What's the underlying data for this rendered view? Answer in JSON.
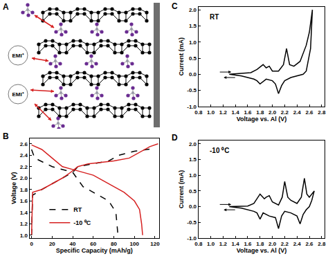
{
  "diagram": {
    "label": "A",
    "ions": [
      "EMI⁺",
      "EMI⁺"
    ]
  },
  "chart_data": [
    {
      "type": "line",
      "annotations": [
        "B"
      ],
      "x_label": "Specific Capacity (mAh/g)",
      "y_label": "Voltage (V)",
      "xlim": [
        -2,
        124
      ],
      "xticks": [
        0,
        20,
        40,
        60,
        80,
        100,
        120
      ],
      "ylim": [
        0.95,
        2.7
      ],
      "yticks": [
        {
          "value": 1.0,
          "label": "1.0"
        },
        1.2,
        1.4,
        1.6,
        1.8,
        {
          "value": 2.0,
          "label": "2.0"
        },
        2.2,
        2.4,
        2.6
      ],
      "legend": "lower left",
      "series": [
        {
          "name": "RT",
          "color": "#000000",
          "line_style": "dash",
          "x": [
            0,
            1,
            10,
            20,
            30,
            40,
            45,
            60,
            75,
            85,
            100,
            120,
            null,
            0,
            3,
            20,
            40,
            50,
            60,
            75,
            82,
            84
          ],
          "values": [
            1.0,
            1.7,
            1.8,
            1.9,
            2.0,
            2.1,
            2.2,
            2.25,
            2.3,
            2.4,
            2.47,
            2.52,
            null,
            2.5,
            2.35,
            2.2,
            2.1,
            1.85,
            1.75,
            1.6,
            1.4,
            1.0
          ]
        },
        {
          "name": "-10 ⁰C",
          "color": "#d62020",
          "line_style": "solid",
          "x": [
            0,
            1,
            10,
            20,
            30,
            38,
            45,
            55,
            80,
            95,
            105,
            115,
            123,
            null,
            0,
            10,
            20,
            30,
            40,
            50,
            60,
            70,
            80,
            90,
            100,
            105,
            107,
            108
          ],
          "values": [
            1.0,
            1.75,
            1.8,
            1.9,
            2.0,
            2.1,
            2.2,
            2.25,
            2.3,
            2.35,
            2.45,
            2.55,
            2.6,
            null,
            2.58,
            2.5,
            2.35,
            2.2,
            2.15,
            2.1,
            2.05,
            1.95,
            1.85,
            1.75,
            1.6,
            1.45,
            1.2,
            1.0
          ]
        }
      ]
    },
    {
      "type": "line",
      "annotations": [
        "C",
        "RT"
      ],
      "x_label": "Voltage vs. Al (V)",
      "y_label": "Current (mA)",
      "xlim": [
        0.8,
        2.85
      ],
      "xticks": [
        0.8,
        {
          "value": 1.0,
          "label": "1.0"
        },
        1.2,
        1.4,
        1.6,
        1.8,
        {
          "value": 2.0,
          "label": "2.0"
        },
        2.2,
        2.4,
        2.6,
        2.8
      ],
      "ylim": [
        -1.0,
        2.1
      ],
      "yticks": [
        {
          "value": -1.0,
          "label": "-1.0"
        },
        -0.5,
        {
          "value": 0.0,
          "label": "0.0"
        },
        0.5,
        {
          "value": 1.0,
          "label": "1.0"
        },
        1.5,
        {
          "value": 2.0,
          "label": "2.0"
        }
      ],
      "series": [
        {
          "name": "RT",
          "color": "#000000",
          "line_style": "solid",
          "x": [
            1.3,
            1.5,
            1.65,
            1.75,
            1.85,
            1.9,
            1.95,
            2.0,
            2.1,
            2.18,
            2.23,
            2.28,
            2.35,
            2.45,
            2.55,
            2.6,
            2.65,
            2.62,
            2.55,
            2.5,
            2.4,
            2.3,
            2.2,
            2.15,
            2.1,
            2.05,
            2.0,
            1.9,
            1.8,
            1.75,
            1.7,
            1.5,
            1.3
          ],
          "values": [
            0.0,
            0.02,
            0.05,
            0.15,
            0.3,
            0.2,
            0.25,
            0.1,
            0.1,
            0.3,
            0.8,
            0.3,
            0.25,
            0.4,
            0.9,
            1.3,
            2.0,
            0.8,
            0.1,
            0.0,
            -0.05,
            -0.1,
            -0.2,
            -0.35,
            -0.6,
            -0.3,
            -0.2,
            -0.15,
            -0.3,
            -0.2,
            -0.15,
            -0.05,
            0.0
          ]
        }
      ]
    },
    {
      "type": "line",
      "annotations": [
        "D",
        "-10 ⁰C"
      ],
      "x_label": "Voltage vs. Al (V)",
      "y_label": "Current (mA)",
      "xlim": [
        0.8,
        2.85
      ],
      "xticks": [
        0.8,
        {
          "value": 1.0,
          "label": "1.0"
        },
        1.2,
        1.4,
        1.6,
        1.8,
        {
          "value": 2.0,
          "label": "2.0"
        },
        2.2,
        2.4,
        2.6,
        2.8
      ],
      "ylim": [
        -1.0,
        2.1
      ],
      "yticks": [
        {
          "value": -1.0,
          "label": "-1.0"
        },
        -0.5,
        {
          "value": 0.0,
          "label": "0.0"
        },
        0.5,
        {
          "value": 1.0,
          "label": "1.0"
        },
        1.5,
        {
          "value": 2.0,
          "label": "2.0"
        }
      ],
      "series": [
        {
          "name": "-10 ⁰C",
          "color": "#000000",
          "line_style": "solid",
          "x": [
            1.3,
            1.6,
            1.7,
            1.8,
            1.87,
            1.9,
            1.95,
            2.0,
            2.1,
            2.16,
            2.2,
            2.25,
            2.3,
            2.4,
            2.47,
            2.52,
            2.56,
            2.6,
            2.68,
            2.64,
            2.6,
            2.55,
            2.5,
            2.45,
            2.4,
            2.3,
            2.2,
            2.15,
            2.1,
            2.05,
            1.95,
            1.85,
            1.8,
            1.75,
            1.7,
            1.5,
            1.3
          ],
          "values": [
            0.0,
            0.02,
            0.1,
            0.4,
            0.25,
            0.3,
            0.35,
            0.15,
            0.05,
            0.3,
            0.8,
            0.3,
            0.2,
            0.1,
            0.3,
            0.9,
            0.4,
            0.3,
            0.5,
            0.2,
            0.0,
            -0.1,
            -0.25,
            -0.55,
            -0.3,
            -0.2,
            -0.15,
            -0.3,
            -0.7,
            -0.35,
            -0.3,
            -0.2,
            -0.4,
            -0.2,
            -0.15,
            -0.05,
            0.0
          ]
        }
      ]
    }
  ]
}
